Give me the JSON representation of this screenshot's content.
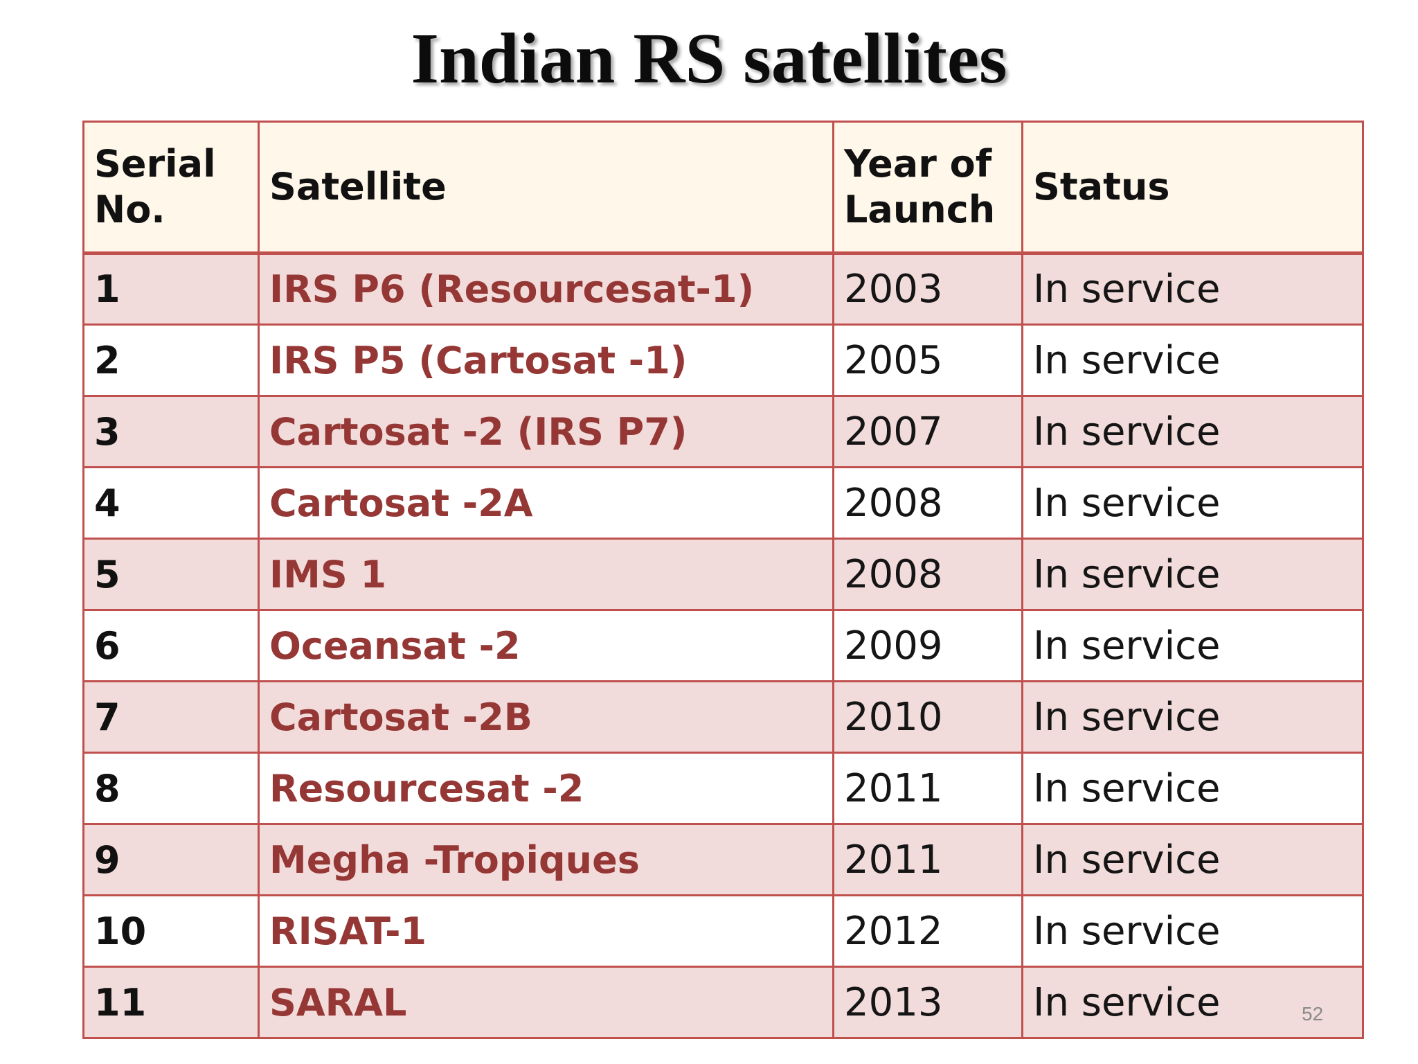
{
  "slide": {
    "title": "Indian RS satellites",
    "page_number": "52"
  },
  "table": {
    "headers": {
      "serial_line1": "Serial",
      "serial_line2": "No.",
      "satellite": "Satellite",
      "year_line1": "Year of",
      "year_line2": "Launch",
      "status": "Status"
    },
    "rows": [
      {
        "serial": "1",
        "satellite": "IRS P6 (Resourcesat-1)",
        "year": "2003",
        "status": "In service"
      },
      {
        "serial": "2",
        "satellite": "IRS P5 (Cartosat -1)",
        "year": "2005",
        "status": "In service"
      },
      {
        "serial": "3",
        "satellite": "Cartosat -2 (IRS P7)",
        "year": "2007",
        "status": "In service"
      },
      {
        "serial": "4",
        "satellite": "Cartosat -2A",
        "year": "2008",
        "status": "In service"
      },
      {
        "serial": "5",
        "satellite": "IMS 1",
        "year": "2008",
        "status": "In service"
      },
      {
        "serial": "6",
        "satellite": "Oceansat -2",
        "year": "2009",
        "status": "In service"
      },
      {
        "serial": "7",
        "satellite": "Cartosat -2B",
        "year": "2010",
        "status": "In service"
      },
      {
        "serial": "8",
        "satellite": "Resourcesat -2",
        "year": "2011",
        "status": "In service"
      },
      {
        "serial": "9",
        "satellite": "Megha -Tropiques",
        "year": "2011",
        "status": "In service"
      },
      {
        "serial": "10",
        "satellite": "RISAT-1",
        "year": "2012",
        "status": "In service"
      },
      {
        "serial": "11",
        "satellite": "SARAL",
        "year": "2013",
        "status": "In service"
      }
    ]
  },
  "colors": {
    "border": "#c0504d",
    "satellite_text": "#953735",
    "header_fill": "#fff7ea",
    "odd_row_fill": "#f2dcdb",
    "even_row_fill": "#ffffff"
  }
}
